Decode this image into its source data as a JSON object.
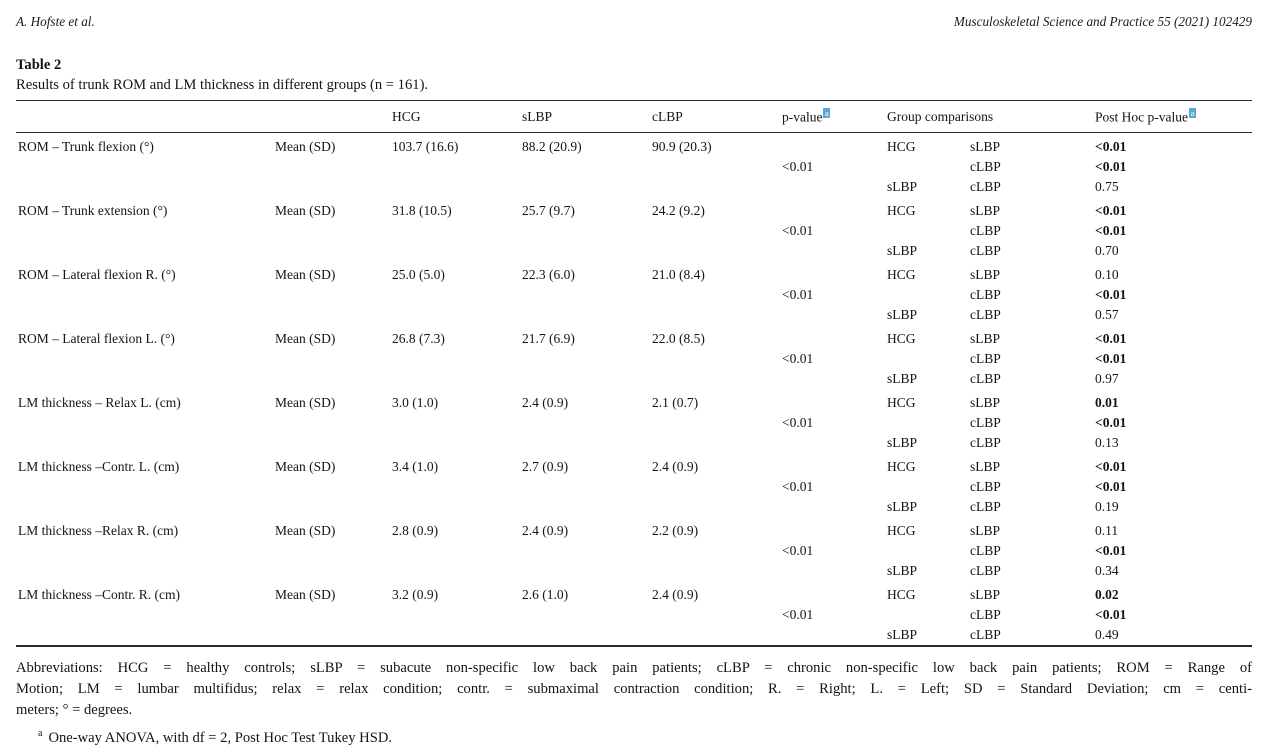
{
  "header": {
    "author": "A. Hofste et al.",
    "journal": "Musculoskeletal Science and Practice 55 (2021) 102429"
  },
  "caption": {
    "label": "Table 2",
    "text": "Results of trunk ROM and LM thickness in different groups (n = 161)."
  },
  "table": {
    "footnote_marker": "a",
    "headers": {
      "measure_col": "",
      "stat_col": "",
      "hcg": "HCG",
      "slbp": "sLBP",
      "clbp": "cLBP",
      "p_value": "p-value",
      "group_comparisons": "Group comparisons",
      "post_hoc": "Post Hoc p-value"
    },
    "groups": [
      {
        "label": "ROM – Trunk flexion (°)",
        "stat": "Mean (SD)",
        "hcg": "103.7 (16.6)",
        "slbp": "88.2 (20.9)",
        "clbp": "90.9 (20.3)",
        "p_value": "<0.01",
        "comparisons": [
          {
            "g1": "HCG",
            "g2": "sLBP",
            "p": "<0.01",
            "bold": true
          },
          {
            "g1": "",
            "g2": "cLBP",
            "p": "<0.01",
            "bold": true
          },
          {
            "g1": "sLBP",
            "g2": "cLBP",
            "p": "0.75",
            "bold": false
          }
        ]
      },
      {
        "label": "ROM – Trunk extension (°)",
        "stat": "Mean (SD)",
        "hcg": "31.8 (10.5)",
        "slbp": "25.7 (9.7)",
        "clbp": "24.2 (9.2)",
        "p_value": "<0.01",
        "comparisons": [
          {
            "g1": "HCG",
            "g2": "sLBP",
            "p": "<0.01",
            "bold": true
          },
          {
            "g1": "",
            "g2": "cLBP",
            "p": "<0.01",
            "bold": true
          },
          {
            "g1": "sLBP",
            "g2": "cLBP",
            "p": "0.70",
            "bold": false
          }
        ]
      },
      {
        "label": "ROM – Lateral flexion R. (°)",
        "stat": "Mean (SD)",
        "hcg": "25.0 (5.0)",
        "slbp": "22.3 (6.0)",
        "clbp": "21.0 (8.4)",
        "p_value": "<0.01",
        "comparisons": [
          {
            "g1": "HCG",
            "g2": "sLBP",
            "p": "0.10",
            "bold": false
          },
          {
            "g1": "",
            "g2": "cLBP",
            "p": "<0.01",
            "bold": true
          },
          {
            "g1": "sLBP",
            "g2": "cLBP",
            "p": "0.57",
            "bold": false
          }
        ]
      },
      {
        "label": "ROM – Lateral flexion L. (°)",
        "stat": "Mean (SD)",
        "hcg": "26.8 (7.3)",
        "slbp": "21.7 (6.9)",
        "clbp": "22.0 (8.5)",
        "p_value": "<0.01",
        "comparisons": [
          {
            "g1": "HCG",
            "g2": "sLBP",
            "p": "<0.01",
            "bold": true
          },
          {
            "g1": "",
            "g2": "cLBP",
            "p": "<0.01",
            "bold": true
          },
          {
            "g1": "sLBP",
            "g2": "cLBP",
            "p": "0.97",
            "bold": false
          }
        ]
      },
      {
        "label": "LM thickness – Relax L. (cm)",
        "stat": "Mean (SD)",
        "hcg": "3.0 (1.0)",
        "slbp": "2.4 (0.9)",
        "clbp": "2.1 (0.7)",
        "p_value": "<0.01",
        "comparisons": [
          {
            "g1": "HCG",
            "g2": "sLBP",
            "p": "0.01",
            "bold": true
          },
          {
            "g1": "",
            "g2": "cLBP",
            "p": "<0.01",
            "bold": true
          },
          {
            "g1": "sLBP",
            "g2": "cLBP",
            "p": "0.13",
            "bold": false
          }
        ]
      },
      {
        "label": "LM thickness –Contr. L. (cm)",
        "stat": "Mean (SD)",
        "hcg": "3.4 (1.0)",
        "slbp": "2.7 (0.9)",
        "clbp": "2.4 (0.9)",
        "p_value": "<0.01",
        "comparisons": [
          {
            "g1": "HCG",
            "g2": "sLBP",
            "p": "<0.01",
            "bold": true
          },
          {
            "g1": "",
            "g2": "cLBP",
            "p": "<0.01",
            "bold": true
          },
          {
            "g1": "sLBP",
            "g2": "cLBP",
            "p": "0.19",
            "bold": false
          }
        ]
      },
      {
        "label": "LM thickness –Relax R. (cm)",
        "stat": "Mean (SD)",
        "hcg": "2.8 (0.9)",
        "slbp": "2.4 (0.9)",
        "clbp": "2.2 (0.9)",
        "p_value": "<0.01",
        "comparisons": [
          {
            "g1": "HCG",
            "g2": "sLBP",
            "p": "0.11",
            "bold": false
          },
          {
            "g1": "",
            "g2": "cLBP",
            "p": "<0.01",
            "bold": true
          },
          {
            "g1": "sLBP",
            "g2": "cLBP",
            "p": "0.34",
            "bold": false
          }
        ]
      },
      {
        "label": "LM thickness –Contr. R. (cm)",
        "stat": "Mean (SD)",
        "hcg": "3.2 (0.9)",
        "slbp": "2.6 (1.0)",
        "clbp": "2.4 (0.9)",
        "p_value": "<0.01",
        "comparisons": [
          {
            "g1": "HCG",
            "g2": "sLBP",
            "p": "0.02",
            "bold": true
          },
          {
            "g1": "",
            "g2": "cLBP",
            "p": "<0.01",
            "bold": true
          },
          {
            "g1": "sLBP",
            "g2": "cLBP",
            "p": "0.49",
            "bold": false
          }
        ]
      }
    ]
  },
  "footer": {
    "abbreviation_lines": [
      "Abbreviations: HCG = healthy controls; sLBP = subacute non-specific low back pain patients; cLBP = chronic non-specific low back pain patients; ROM = Range of",
      "Motion; LM = lumbar multifidus; relax = relax condition; contr. = submaximal contraction condition; R. = Right; L. = Left; SD = Standard Deviation; cm = centi-",
      "meters; ° = degrees."
    ],
    "footnote_marker": "a",
    "footnote_text": "One-way ANOVA, with df = 2, Post Hoc Test Tukey HSD."
  },
  "colors": {
    "footnote_link_background": "#5ba6d6",
    "text": "#141414",
    "rule": "#2a2a2a"
  }
}
